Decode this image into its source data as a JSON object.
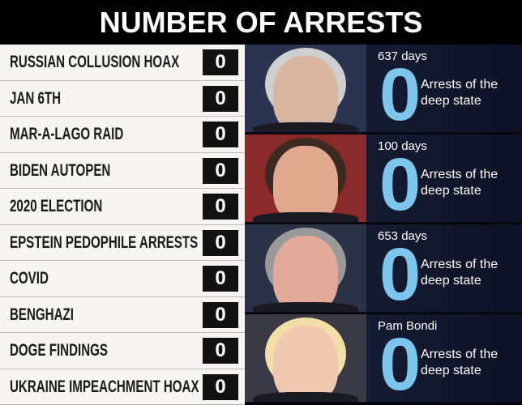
{
  "header": {
    "title": "NUMBER OF ARRESTS"
  },
  "table": {
    "rows": [
      {
        "label": "RUSSIAN COLLUSION HOAX",
        "count": 0
      },
      {
        "label": "JAN 6TH",
        "count": 0
      },
      {
        "label": "MAR-A-LAGO RAID",
        "count": 0
      },
      {
        "label": "BIDEN AUTOPEN",
        "count": 0
      },
      {
        "label": "2020 ELECTION",
        "count": 0
      },
      {
        "label": "EPSTEIN PEDOPHILE ARRESTS",
        "count": 0
      },
      {
        "label": "COVID",
        "count": 0
      },
      {
        "label": "BENGHAZI",
        "count": 0
      },
      {
        "label": "DOGE FINDINGS",
        "count": 0
      },
      {
        "label": "UKRAINE IMPEACHMENT HOAX",
        "count": 0
      }
    ]
  },
  "panels": [
    {
      "caption": "637 days",
      "count": 0,
      "text": "Arrests of the deep state"
    },
    {
      "caption": "100 days",
      "count": 0,
      "text": "Arrests of the deep state"
    },
    {
      "caption": "653 days",
      "count": 0,
      "text": "Arrests of the deep state"
    },
    {
      "caption": "Pam Bondi",
      "count": 0,
      "text": "Arrests of the deep state"
    }
  ]
}
